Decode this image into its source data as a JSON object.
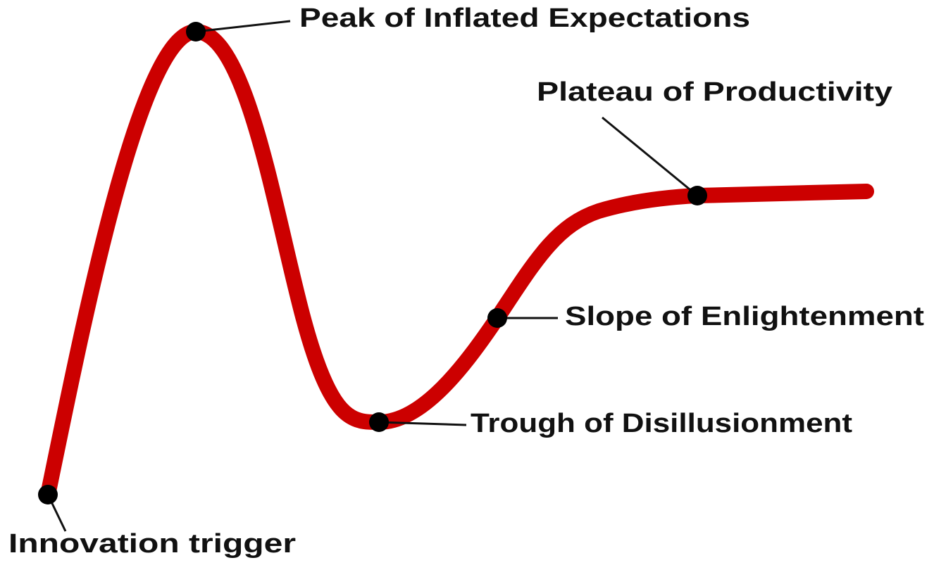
{
  "nodes": [
    {
      "label": "Peak of Inflated Expectations"
    },
    {
      "label": "Plateau of Productivity"
    },
    {
      "label": "Slope of Enlightenment"
    },
    {
      "label": "Trough of Disillusionment"
    },
    {
      "label": "Innovation trigger"
    }
  ]
}
